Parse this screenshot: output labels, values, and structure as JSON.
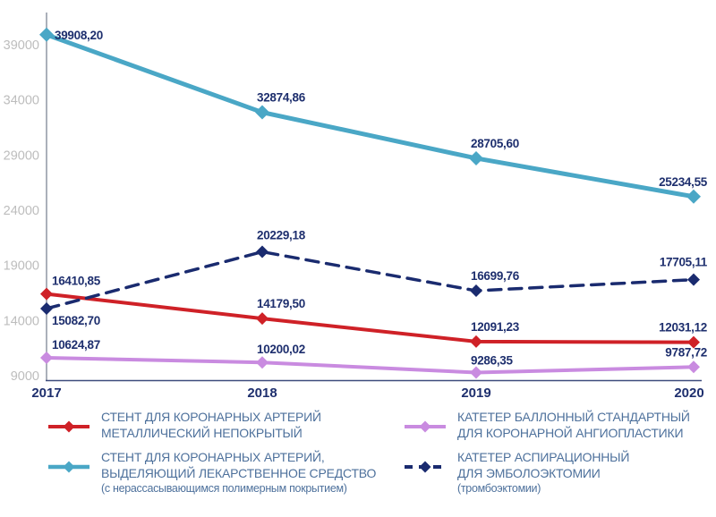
{
  "chart_data": {
    "type": "line",
    "title": "",
    "xlabel": "",
    "ylabel": "",
    "grid": false,
    "legend_position": "bottom",
    "x_labels": [
      "2017",
      "2018",
      "2019",
      "2020"
    ],
    "y_ticks": [
      9000,
      14000,
      19000,
      24000,
      29000,
      34000,
      39000
    ],
    "ylim": [
      9000,
      40500
    ],
    "series": [
      {
        "name": "СТЕНТ ДЛЯ КОРОНАРНЫХ АРТЕРИЙ МЕТАЛЛИЧЕСКИЙ НЕПОКРЫТЫЙ",
        "color": "#cf2127",
        "dash": false,
        "values": [
          16410.85,
          14179.5,
          12091.23,
          12031.12
        ],
        "labels": [
          "16410,85",
          "14179,50",
          "12091,23",
          "12031,12"
        ]
      },
      {
        "name": "СТЕНТ ДЛЯ КОРОНАРНЫХ АРТЕРИЙ, ВЫДЕЛЯЮЩИЙ ЛЕКАРСТВЕННОЕ СРЕДСТВО (с нерассасывающимся полимерным покрытием)",
        "color": "#4aa7c6",
        "dash": false,
        "values": [
          39908.2,
          32874.86,
          28705.6,
          25234.55
        ],
        "labels": [
          "39908,20",
          "32874,86",
          "28705,60",
          "25234,55"
        ]
      },
      {
        "name": "КАТЕТЕР БАЛЛОННЫЙ СТАНДАРТНЫЙ ДЛЯ КОРОНАРНОЙ АНГИОПЛАСТИКИ",
        "color": "#c98be0",
        "dash": false,
        "values": [
          10624.87,
          10200.02,
          9286.35,
          9787.72
        ],
        "labels": [
          "10624,87",
          "10200,02",
          "9286,35",
          "9787,72"
        ]
      },
      {
        "name": "КАТЕТЕР АСПИРАЦИОННЫЙ ДЛЯ ЭМБОЛОЭКТОМИИ (тромбоэктомии)",
        "color": "#1a2b6f",
        "dash": true,
        "values": [
          15082.7,
          20229.18,
          16699.76,
          17705.11
        ],
        "labels": [
          "15082,70",
          "20229,18",
          "16699,76",
          "17705,11"
        ]
      }
    ]
  },
  "colors": {
    "axis_line_y": "#8f96a3",
    "axis_line_x": "#3d4b7c",
    "tick_text": "#bdbdbd",
    "year_text": "#1e2f6e",
    "data_label": "#1e2f6e",
    "legend_text": "#4e719c"
  },
  "legend": {
    "items": [
      {
        "id": "bare-metal-stent",
        "lines": [
          "СТЕНТ ДЛЯ КОРОНАРНЫХ АРТЕРИЙ",
          "МЕТАЛЛИЧЕСКИЙ НЕПОКРЫТЫЙ"
        ]
      },
      {
        "id": "balloon-catheter",
        "lines": [
          "КАТЕТЕР БАЛЛОННЫЙ СТАНДАРТНЫЙ",
          "ДЛЯ КОРОНАРНОЙ АНГИОПЛАСТИКИ"
        ]
      },
      {
        "id": "drug-eluting-stent",
        "lines": [
          "СТЕНТ ДЛЯ КОРОНАРНЫХ АРТЕРИЙ,",
          "ВЫДЕЛЯЮЩИЙ ЛЕКАРСТВЕННОЕ СРЕДСТВО"
        ],
        "sub": "(с нерассасывающимся полимерным  покрытием)"
      },
      {
        "id": "aspiration-catheter",
        "lines": [
          "КАТЕТЕР АСПИРАЦИОННЫЙ",
          "ДЛЯ ЭМБОЛОЭКТОМИИ"
        ],
        "sub": "(тромбоэктомии)"
      }
    ]
  }
}
